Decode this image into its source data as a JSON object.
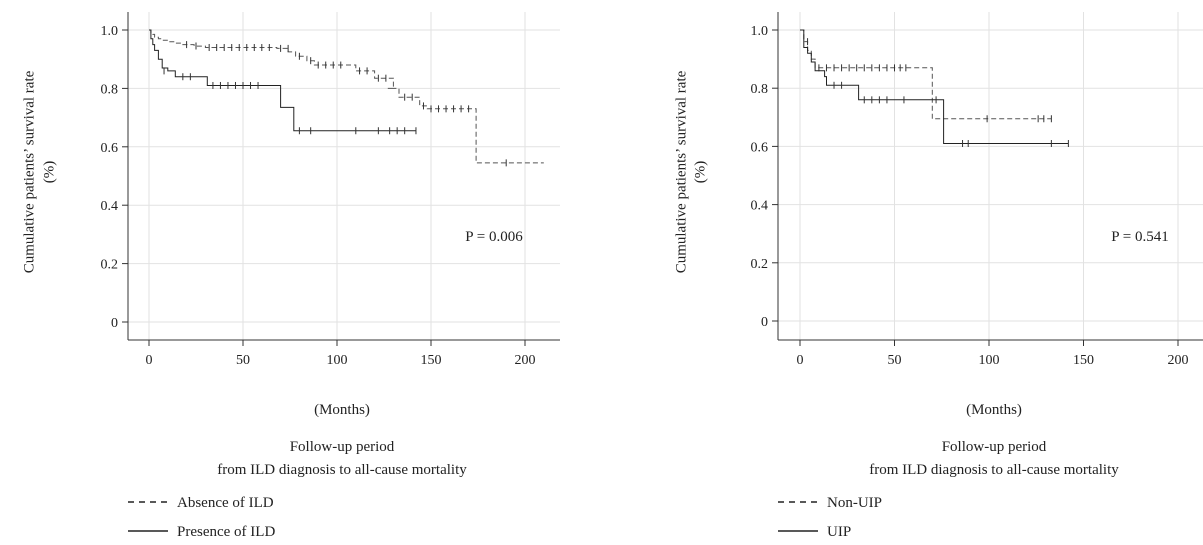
{
  "chart_data": [
    {
      "type": "line",
      "subtype": "kaplan-meier",
      "ylabel_line1": "Cumulative patients’ survival rate",
      "ylabel_line2": "(%)",
      "xunit": "(Months)",
      "xcaption_line1": "Follow-up period",
      "xcaption_line2": "from ILD diagnosis to all-cause mortality",
      "annotation": "P = 0.006",
      "xlim": [
        0,
        210
      ],
      "ylim": [
        0,
        1.05
      ],
      "xticks": [
        0,
        50,
        100,
        150,
        200
      ],
      "yticks": [
        0,
        0.2,
        0.4,
        0.6,
        0.8,
        1.0
      ],
      "yticklabels": [
        "0",
        "0.2",
        "0.4",
        "0.6",
        "0.8",
        "1.0"
      ],
      "grid": true,
      "legend_position": "bottom-left",
      "series": [
        {
          "name": "Absence of ILD",
          "style": "dashed",
          "steps": [
            [
              0,
              1.0
            ],
            [
              1,
              0.99
            ],
            [
              2,
              0.985
            ],
            [
              3,
              0.975
            ],
            [
              5,
              0.97
            ],
            [
              7,
              0.965
            ],
            [
              10,
              0.96
            ],
            [
              14,
              0.955
            ],
            [
              18,
              0.95
            ],
            [
              24,
              0.945
            ],
            [
              30,
              0.94
            ],
            [
              50,
              0.94
            ],
            [
              68,
              0.937
            ],
            [
              74,
              0.925
            ],
            [
              78,
              0.91
            ],
            [
              84,
              0.895
            ],
            [
              88,
              0.88
            ],
            [
              110,
              0.86
            ],
            [
              120,
              0.835
            ],
            [
              130,
              0.8
            ],
            [
              127,
              0.8
            ],
            [
              133,
              0.77
            ],
            [
              144,
              0.74
            ],
            [
              148,
              0.73
            ],
            [
              173,
              0.73
            ],
            [
              174,
              0.545
            ],
            [
              210,
              0.545
            ]
          ],
          "censored": [
            [
              20,
              0.95
            ],
            [
              25,
              0.945
            ],
            [
              32,
              0.94
            ],
            [
              36,
              0.94
            ],
            [
              40,
              0.94
            ],
            [
              44,
              0.94
            ],
            [
              48,
              0.94
            ],
            [
              52,
              0.94
            ],
            [
              56,
              0.94
            ],
            [
              60,
              0.94
            ],
            [
              64,
              0.94
            ],
            [
              70,
              0.937
            ],
            [
              74,
              0.937
            ],
            [
              80,
              0.91
            ],
            [
              86,
              0.895
            ],
            [
              90,
              0.88
            ],
            [
              94,
              0.88
            ],
            [
              98,
              0.88
            ],
            [
              102,
              0.88
            ],
            [
              112,
              0.86
            ],
            [
              116,
              0.86
            ],
            [
              122,
              0.835
            ],
            [
              126,
              0.835
            ],
            [
              136,
              0.77
            ],
            [
              140,
              0.77
            ],
            [
              146,
              0.74
            ],
            [
              150,
              0.73
            ],
            [
              154,
              0.73
            ],
            [
              158,
              0.73
            ],
            [
              162,
              0.73
            ],
            [
              166,
              0.73
            ],
            [
              170,
              0.73
            ],
            [
              190,
              0.545
            ]
          ]
        },
        {
          "name": "Presence of ILD",
          "style": "solid",
          "steps": [
            [
              0,
              1.0
            ],
            [
              1,
              0.97
            ],
            [
              2,
              0.95
            ],
            [
              3,
              0.93
            ],
            [
              5,
              0.9
            ],
            [
              7,
              0.87
            ],
            [
              10,
              0.86
            ],
            [
              14,
              0.84
            ],
            [
              30,
              0.84
            ],
            [
              31,
              0.81
            ],
            [
              69,
              0.81
            ],
            [
              70,
              0.735
            ],
            [
              76,
              0.735
            ],
            [
              77,
              0.655
            ],
            [
              142,
              0.655
            ]
          ],
          "censored": [
            [
              8,
              0.86
            ],
            [
              18,
              0.84
            ],
            [
              22,
              0.84
            ],
            [
              34,
              0.81
            ],
            [
              38,
              0.81
            ],
            [
              42,
              0.81
            ],
            [
              46,
              0.81
            ],
            [
              50,
              0.81
            ],
            [
              54,
              0.81
            ],
            [
              58,
              0.81
            ],
            [
              80,
              0.655
            ],
            [
              86,
              0.655
            ],
            [
              110,
              0.655
            ],
            [
              122,
              0.655
            ],
            [
              128,
              0.655
            ],
            [
              132,
              0.655
            ],
            [
              136,
              0.655
            ],
            [
              142,
              0.655
            ]
          ]
        }
      ]
    },
    {
      "type": "line",
      "subtype": "kaplan-meier",
      "ylabel_line1": "Cumulative patients’ survival rate",
      "ylabel_line2": "(%)",
      "xunit": "(Months)",
      "xcaption_line1": "Follow-up period",
      "xcaption_line2": "from ILD diagnosis to all-cause mortality",
      "annotation": "P = 0.541",
      "xlim": [
        0,
        210
      ],
      "ylim": [
        0,
        1.05
      ],
      "xticks": [
        0,
        50,
        100,
        150,
        200
      ],
      "yticks": [
        0,
        0.2,
        0.4,
        0.6,
        0.8,
        1.0
      ],
      "yticklabels": [
        "0",
        "0.2",
        "0.4",
        "0.6",
        "0.8",
        "1.0"
      ],
      "grid": true,
      "legend_position": "bottom-left",
      "series": [
        {
          "name": "Non-UIP",
          "style": "dashed",
          "steps": [
            [
              0,
              1.0
            ],
            [
              2,
              0.96
            ],
            [
              4,
              0.93
            ],
            [
              6,
              0.9
            ],
            [
              8,
              0.87
            ],
            [
              69,
              0.87
            ],
            [
              70,
              0.695
            ],
            [
              133,
              0.695
            ]
          ],
          "censored": [
            [
              4,
              0.96
            ],
            [
              10,
              0.87
            ],
            [
              14,
              0.87
            ],
            [
              18,
              0.87
            ],
            [
              22,
              0.87
            ],
            [
              26,
              0.87
            ],
            [
              30,
              0.87
            ],
            [
              34,
              0.87
            ],
            [
              38,
              0.87
            ],
            [
              42,
              0.87
            ],
            [
              46,
              0.87
            ],
            [
              50,
              0.87
            ],
            [
              53,
              0.87
            ],
            [
              56,
              0.87
            ],
            [
              99,
              0.695
            ],
            [
              126,
              0.695
            ],
            [
              129,
              0.695
            ],
            [
              133,
              0.695
            ]
          ]
        },
        {
          "name": "UIP",
          "style": "solid",
          "steps": [
            [
              0,
              1.0
            ],
            [
              2,
              0.94
            ],
            [
              4,
              0.92
            ],
            [
              6,
              0.89
            ],
            [
              8,
              0.86
            ],
            [
              13,
              0.84
            ],
            [
              14,
              0.81
            ],
            [
              30,
              0.81
            ],
            [
              31,
              0.76
            ],
            [
              75,
              0.76
            ],
            [
              76,
              0.61
            ],
            [
              142,
              0.61
            ]
          ],
          "censored": [
            [
              18,
              0.81
            ],
            [
              22,
              0.81
            ],
            [
              34,
              0.76
            ],
            [
              38,
              0.76
            ],
            [
              42,
              0.76
            ],
            [
              46,
              0.76
            ],
            [
              55,
              0.76
            ],
            [
              72,
              0.76
            ],
            [
              86,
              0.61
            ],
            [
              89,
              0.61
            ],
            [
              133,
              0.61
            ],
            [
              142,
              0.61
            ]
          ]
        }
      ]
    }
  ]
}
